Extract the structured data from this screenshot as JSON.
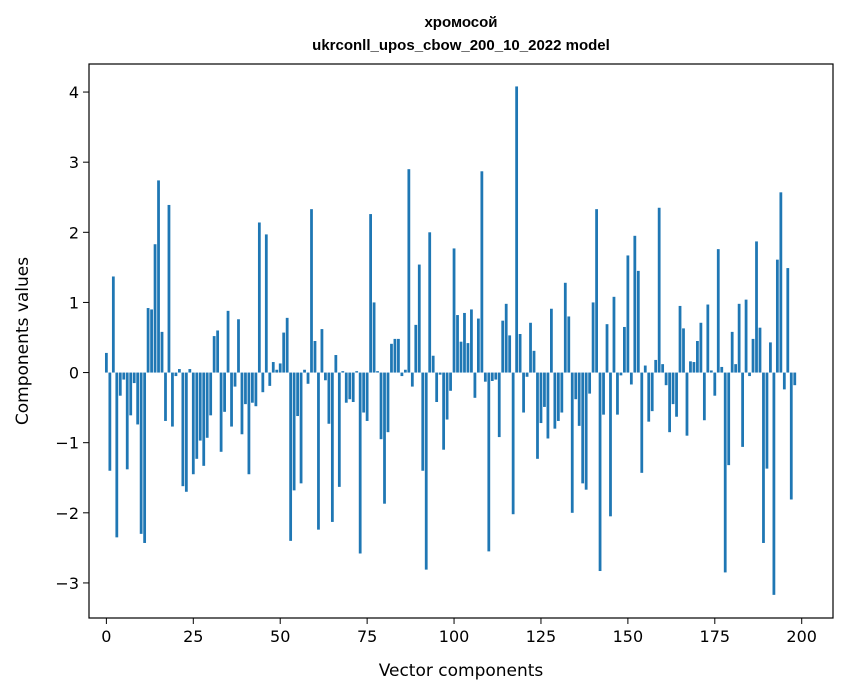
{
  "chart_data": {
    "type": "bar",
    "title": "хромосой",
    "subtitle": "ukrconll_upos_cbow_200_10_2022 model",
    "xlabel": "Vector components",
    "ylabel": "Components values",
    "xlim": [
      -5,
      209
    ],
    "ylim": [
      -3.5,
      4.4
    ],
    "xticks": [
      0,
      25,
      50,
      75,
      100,
      125,
      150,
      175,
      200
    ],
    "yticks": [
      -3,
      -2,
      -1,
      0,
      1,
      2,
      3,
      4
    ],
    "grid": false,
    "bar_color": "#1f77b4",
    "values": [
      0.28,
      -1.4,
      1.37,
      -2.35,
      -0.33,
      -0.1,
      -1.38,
      -0.61,
      -0.15,
      -0.74,
      -2.3,
      -2.43,
      0.92,
      0.9,
      1.83,
      2.74,
      0.58,
      -0.69,
      2.39,
      -0.77,
      -0.05,
      0.05,
      -1.62,
      -1.7,
      0.05,
      -1.45,
      -1.23,
      -0.97,
      -1.33,
      -0.93,
      -0.61,
      0.52,
      0.6,
      -1.13,
      -0.56,
      0.88,
      -0.77,
      -0.2,
      0.76,
      -0.88,
      -0.45,
      -1.45,
      -0.43,
      -0.48,
      2.14,
      -0.28,
      1.97,
      -0.19,
      0.15,
      0.04,
      0.13,
      0.57,
      0.78,
      -2.4,
      -1.68,
      -0.62,
      -1.58,
      0.04,
      -0.16,
      2.33,
      0.45,
      -2.24,
      0.62,
      -0.11,
      -0.73,
      -2.13,
      0.25,
      -1.63,
      0.02,
      -0.43,
      -0.38,
      -0.42,
      0.02,
      -2.58,
      -0.57,
      -0.69,
      2.26,
      1.0,
      0.02,
      -0.95,
      -1.87,
      -0.85,
      0.41,
      0.48,
      0.48,
      -0.05,
      0.04,
      2.9,
      -0.2,
      0.68,
      1.54,
      -1.4,
      -2.81,
      2.0,
      0.24,
      -0.42,
      -0.03,
      -1.1,
      -0.67,
      -0.26,
      1.77,
      0.82,
      0.44,
      0.85,
      0.42,
      0.9,
      -0.36,
      0.77,
      2.87,
      -0.13,
      -2.55,
      -0.12,
      -0.1,
      -0.92,
      0.74,
      0.98,
      0.53,
      -2.02,
      4.08,
      0.55,
      -0.57,
      -0.06,
      0.71,
      0.31,
      -1.23,
      -0.72,
      -0.49,
      -0.94,
      0.91,
      -0.8,
      -0.69,
      -0.57,
      1.28,
      0.8,
      -2.0,
      -0.38,
      -0.76,
      -1.58,
      -1.67,
      -0.3,
      1.0,
      2.33,
      -2.83,
      -0.6,
      0.69,
      -2.05,
      1.08,
      -0.6,
      -0.04,
      0.65,
      1.67,
      -0.17,
      1.95,
      1.45,
      -1.43,
      0.1,
      -0.7,
      -0.55,
      0.18,
      2.35,
      0.12,
      -0.18,
      -0.85,
      -0.45,
      -0.63,
      0.95,
      0.63,
      -0.9,
      0.16,
      0.15,
      0.45,
      0.71,
      -0.68,
      0.97,
      0.03,
      -0.33,
      1.76,
      0.08,
      -2.85,
      -1.32,
      0.58,
      0.12,
      0.98,
      -1.06,
      1.04,
      -0.05,
      0.48,
      1.87,
      0.64,
      -2.43,
      -1.37,
      0.43,
      -3.17,
      1.61,
      2.57,
      -0.24,
      1.49,
      -1.81,
      -0.18
    ]
  }
}
